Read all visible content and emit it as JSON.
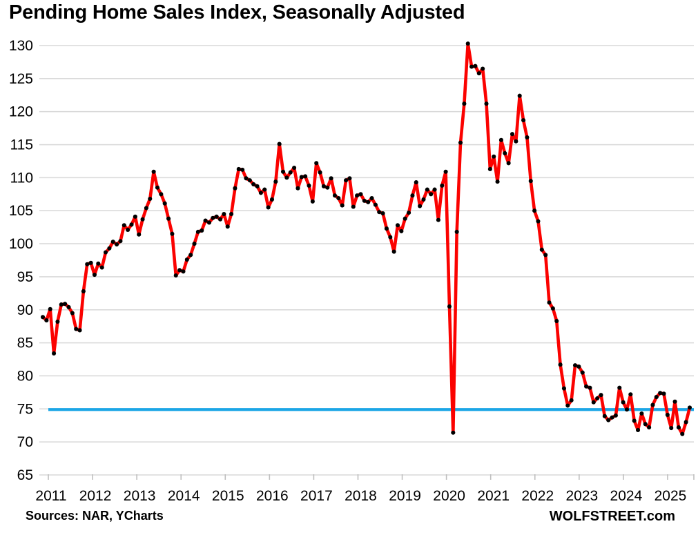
{
  "page": {
    "title": "Pending Home Sales Index, Seasonally Adjusted",
    "source_note": "Sources: NAR, YCharts",
    "watermark": "WOLFSTREET.com"
  },
  "chart_data": {
    "type": "line",
    "title": "Pending Home Sales Index, Seasonally Adjusted",
    "xlabel": "",
    "ylabel": "",
    "ylim": [
      65,
      130
    ],
    "ytick_step": 5,
    "grid": true,
    "legend_position": "none",
    "x_tick_labels": [
      "2011",
      "2012",
      "2013",
      "2014",
      "2015",
      "2016",
      "2017",
      "2018",
      "2019",
      "2020",
      "2021",
      "2022",
      "2023",
      "2024",
      "2025"
    ],
    "frequency": "monthly",
    "start_month": "2011-01",
    "end_month": "2025-08",
    "reference_line": {
      "value": 74.9,
      "color": "#1ba6e6"
    },
    "colors": {
      "line": "#fb0200",
      "marker": "#000000",
      "gridline": "#d9d9d9",
      "tick": "#bfbfbf",
      "background": "#ffffff"
    },
    "series_name": "Pending Home Sales Index (seasonally adjusted)",
    "values_by_year": {
      "2011": [
        88.9,
        88.4,
        90.1,
        83.4,
        88.2,
        90.8,
        90.9,
        90.4,
        89.5,
        87.1,
        86.9,
        92.8
      ],
      "2012": [
        96.9,
        97.1,
        95.3,
        97.0,
        96.4,
        98.7,
        99.3,
        100.3,
        99.9,
        100.4,
        102.8,
        102.1
      ],
      "2013": [
        102.9,
        104.1,
        101.4,
        103.7,
        105.4,
        106.8,
        110.9,
        108.5,
        107.5,
        106.1,
        103.8,
        101.5
      ],
      "2014": [
        95.2,
        96.0,
        95.8,
        97.6,
        98.3,
        100.0,
        101.8,
        102.0,
        103.5,
        103.2,
        103.9,
        104.1
      ],
      "2015": [
        103.7,
        104.5,
        102.6,
        104.5,
        108.4,
        111.3,
        111.2,
        109.9,
        109.6,
        109.0,
        108.7,
        107.7
      ],
      "2016": [
        108.2,
        105.5,
        106.7,
        109.4,
        115.1,
        110.9,
        110.0,
        110.8,
        111.5,
        108.4,
        110.1,
        110.2
      ],
      "2017": [
        108.8,
        106.4,
        112.2,
        110.8,
        108.7,
        108.5,
        109.9,
        107.3,
        106.9,
        105.8,
        109.6,
        109.9
      ],
      "2018": [
        105.6,
        107.3,
        107.5,
        106.5,
        106.3,
        106.9,
        105.9,
        104.8,
        104.6,
        102.3,
        101.0,
        98.8
      ],
      "2019": [
        102.8,
        101.9,
        103.8,
        104.7,
        107.3,
        109.3,
        105.7,
        106.7,
        108.2,
        107.5,
        108.2,
        103.6
      ],
      "2020": [
        108.8,
        110.9,
        90.5,
        71.4,
        101.8,
        115.3,
        121.2,
        130.3,
        126.8,
        126.9,
        125.8,
        126.5
      ],
      "2021": [
        121.2,
        111.3,
        113.2,
        109.4,
        115.7,
        113.7,
        112.2,
        116.6,
        115.5,
        122.4,
        118.7,
        116.1
      ],
      "2022": [
        109.5,
        105.0,
        103.4,
        99.1,
        98.3,
        91.1,
        90.2,
        88.3,
        81.7,
        78.1,
        75.5,
        76.3
      ],
      "2023": [
        81.6,
        81.4,
        80.5,
        78.4,
        78.2,
        76.0,
        76.6,
        77.1,
        73.9,
        73.3,
        73.7,
        74.0
      ],
      "2024": [
        78.2,
        76.0,
        74.9,
        77.2,
        73.2,
        71.8,
        74.3,
        72.7,
        72.2,
        75.6,
        76.8,
        77.4
      ],
      "2025": [
        77.3,
        74.1,
        72.1,
        76.1,
        72.2,
        71.2,
        73.0,
        75.2
      ]
    }
  }
}
